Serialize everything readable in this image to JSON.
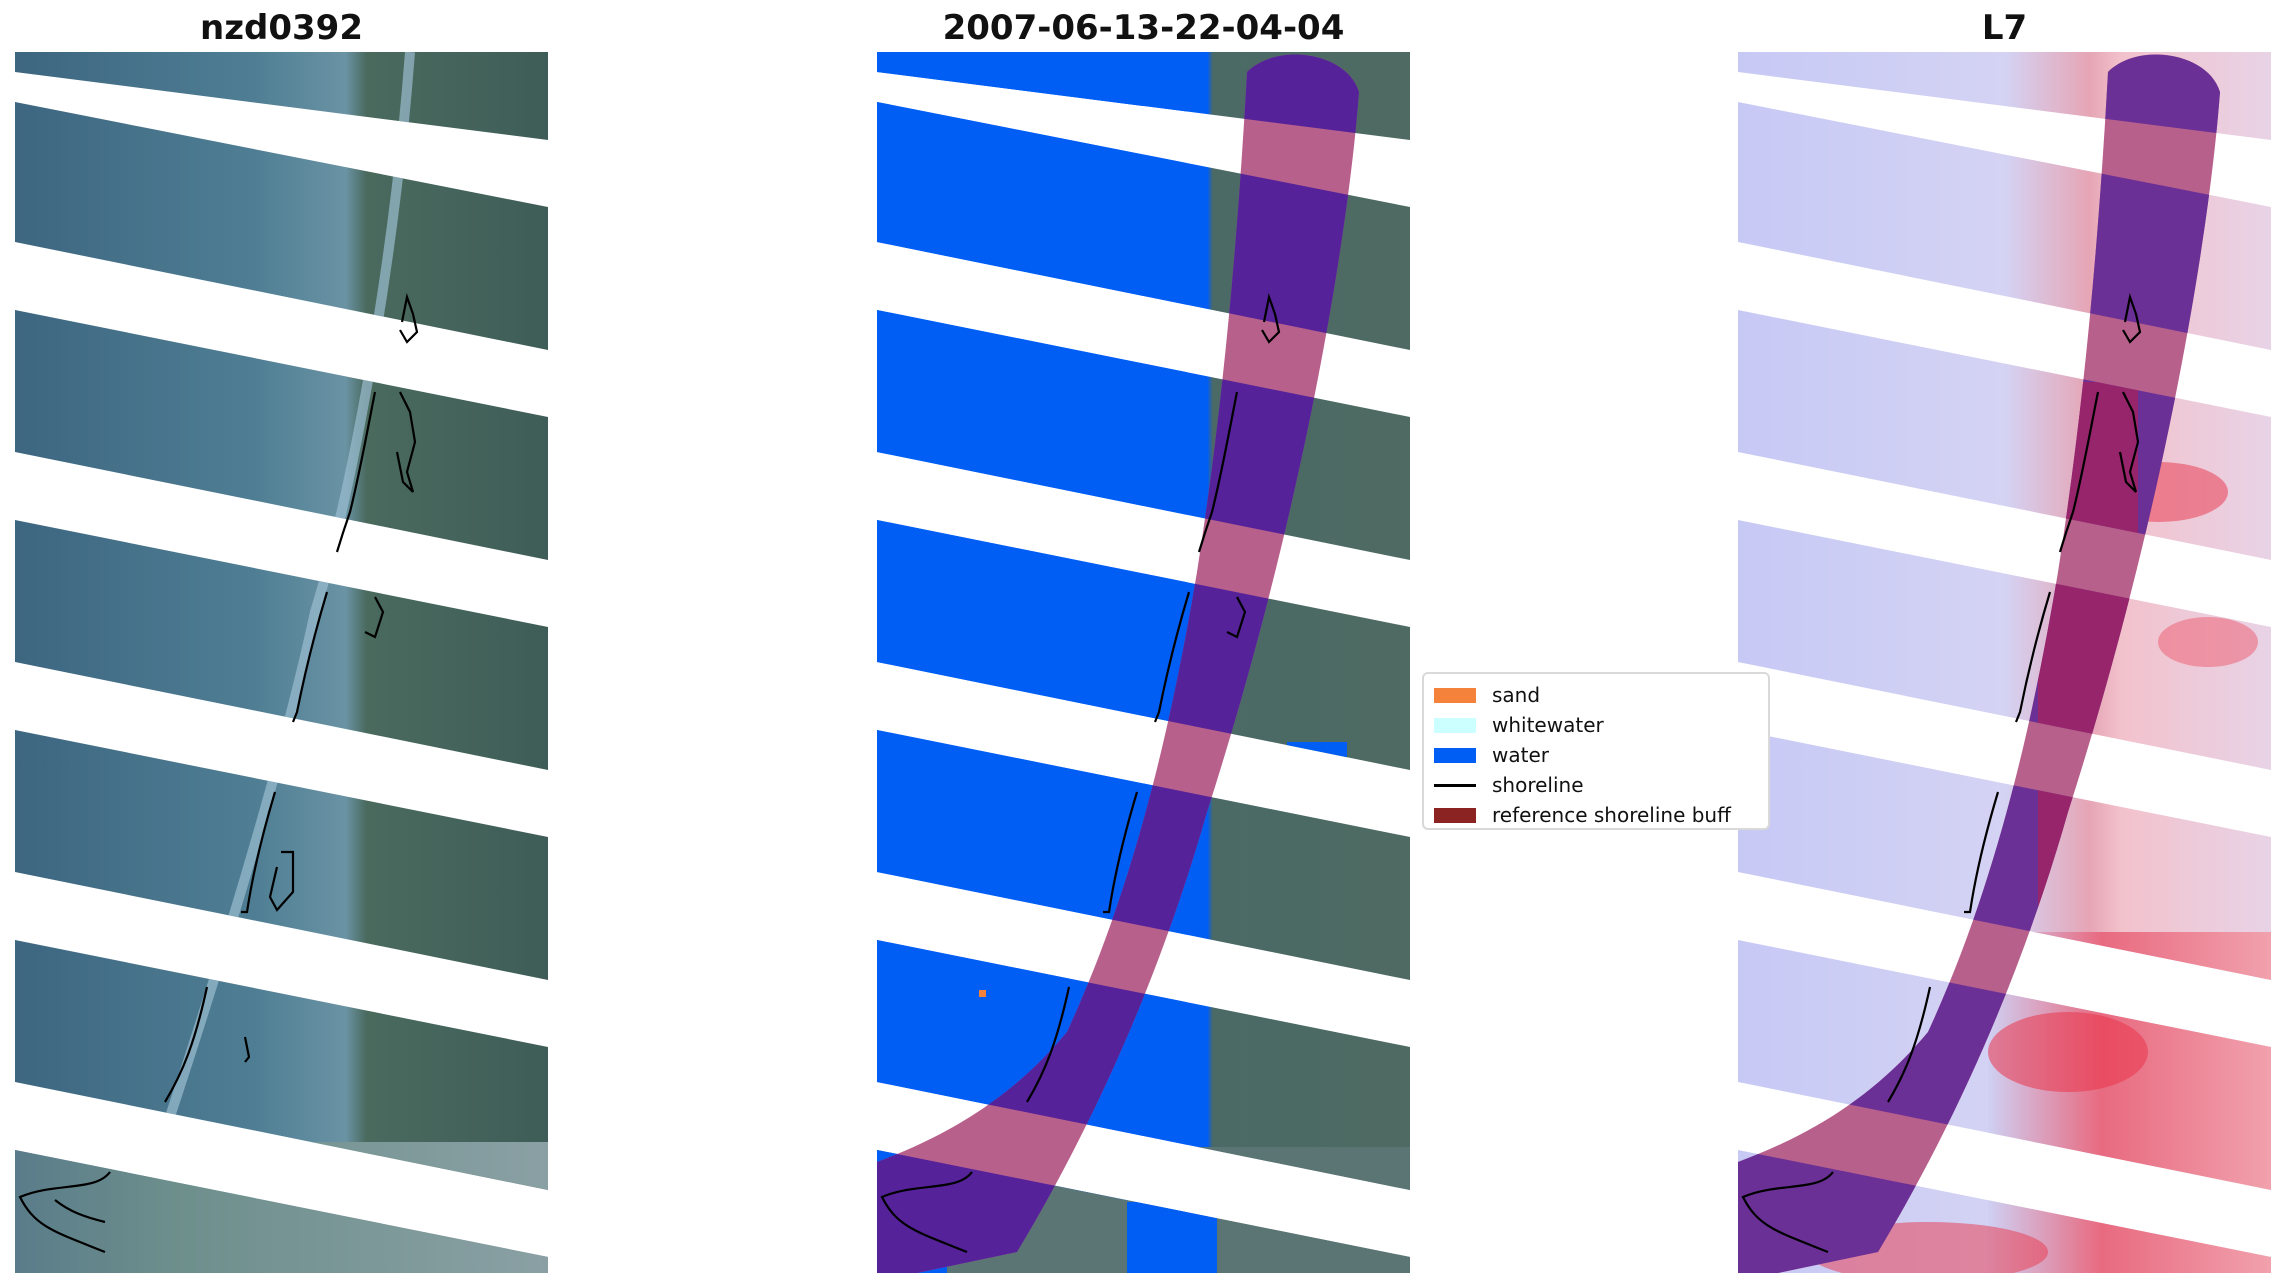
{
  "panels": [
    {
      "title": "nzd0392"
    },
    {
      "title": "2007-06-13-22-04-04"
    },
    {
      "title": "L7"
    }
  ],
  "legend": {
    "items": [
      {
        "label": "sand",
        "color": "#f5823a",
        "kind": "patch"
      },
      {
        "label": "whitewater",
        "color": "#ccffff",
        "kind": "patch"
      },
      {
        "label": "water",
        "color": "#005ef5",
        "kind": "patch"
      },
      {
        "label": "shoreline",
        "color": "#000000",
        "kind": "line"
      },
      {
        "label": "reference shoreline buff",
        "color": "#8b2323",
        "kind": "patch"
      }
    ]
  },
  "colors": {
    "rgb_water": "#3f6a86",
    "rgb_land": "#4b6a5c",
    "class_water": "#005ef5",
    "buffer_band_light": "#b8608c",
    "buffer_band_dark": "#55229a",
    "mndwi_low": "#c7c9f5",
    "mndwi_high": "#e53043"
  }
}
